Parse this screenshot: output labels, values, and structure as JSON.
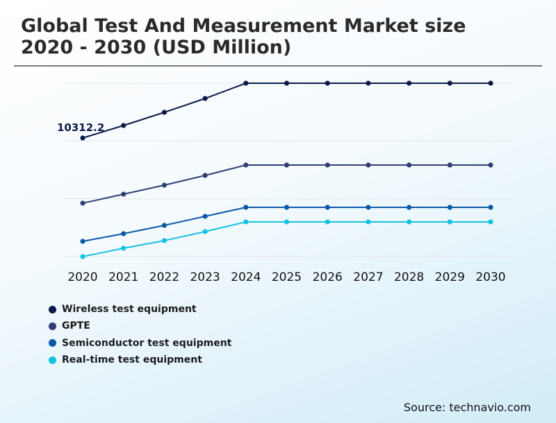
{
  "title_line1": "Global Test And Measurement Market size",
  "title_line2": "2020 - 2030 (USD Million)",
  "source": "Source: technavio.com",
  "chart_data": {
    "type": "line",
    "title": "Global Test And Measurement Market size 2020 - 2030 (USD Million)",
    "categories": [
      "2020",
      "2021",
      "2022",
      "2023",
      "2024",
      "2025",
      "2026",
      "2027",
      "2028",
      "2029",
      "2030"
    ],
    "grid": true,
    "legend_placement": "bottom-left",
    "data_labels": [
      {
        "series": "Wireless test equipment",
        "category": "2020",
        "text": "10312.2"
      }
    ],
    "series": [
      {
        "name": "Wireless test equipment",
        "color": "#0b1a48",
        "values": [
          10312.2,
          11042,
          11812,
          12623,
          13515,
          13515,
          13515,
          13515,
          13515,
          13515,
          13515
        ]
      },
      {
        "name": "GPTE",
        "color": "#2f3f73",
        "values": [
          6500,
          7027,
          7554,
          8122,
          8730,
          8730,
          8730,
          8730,
          8730,
          8730,
          8730
        ]
      },
      {
        "name": "Semiconductor test equipment",
        "color": "#0a58a6",
        "values": [
          4270,
          4716,
          5203,
          5730,
          6257,
          6257,
          6257,
          6257,
          6257,
          6257,
          6257
        ]
      },
      {
        "name": "Real-time test equipment",
        "color": "#14c2e2",
        "values": [
          3378,
          3865,
          4311,
          4838,
          5405,
          5405,
          5405,
          5405,
          5405,
          5405,
          5405
        ]
      }
    ]
  }
}
